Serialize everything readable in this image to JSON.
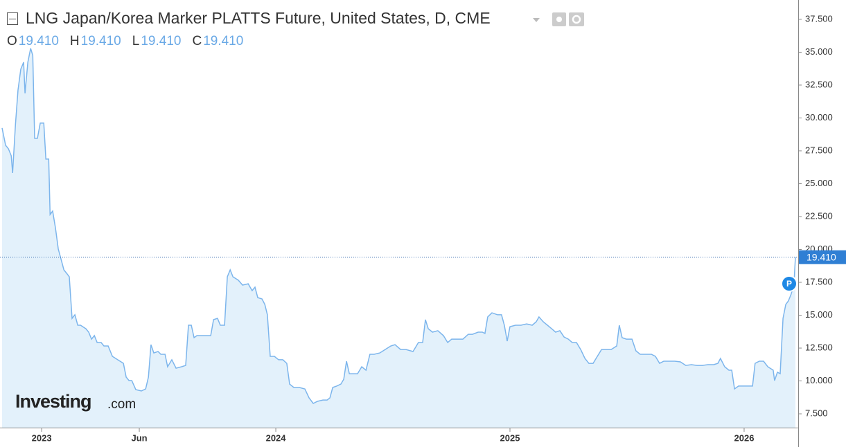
{
  "chart_data": {
    "type": "area",
    "title": "LNG Japan/Korea Marker PLATTS Future, United States, D, CME",
    "ohlc": [
      {
        "label": "O",
        "text": "19.410"
      },
      {
        "label": "H",
        "text": "19.410"
      },
      {
        "label": "L",
        "text": "19.410"
      },
      {
        "label": "C",
        "text": "19.410"
      }
    ],
    "watermark": [
      "Investing",
      ".com"
    ],
    "marker_label": "P",
    "last_price": {
      "value": 19.41,
      "label": "19.410"
    },
    "color": "#7cb5ec",
    "fill": "#e3f1fb",
    "xlim": [
      2022.831,
      2026.225
    ],
    "ylim": [
      6.45,
      38.97
    ],
    "xticks": [
      {
        "value": 2023,
        "label": "2023"
      },
      {
        "value": 2023.417,
        "label": "Jun"
      },
      {
        "value": 2024,
        "label": "2024"
      },
      {
        "value": 2025,
        "label": "2025"
      },
      {
        "value": 2026,
        "label": "2026"
      }
    ],
    "yticks": [
      {
        "value": 7.5,
        "label": "7.500"
      },
      {
        "value": 10,
        "label": "10.000"
      },
      {
        "value": 12.5,
        "label": "12.500"
      },
      {
        "value": 15,
        "label": "15.000"
      },
      {
        "value": 17.5,
        "label": "17.500"
      },
      {
        "value": 20,
        "label": "20.000"
      },
      {
        "value": 22.5,
        "label": "22.500"
      },
      {
        "value": 25,
        "label": "25.000"
      },
      {
        "value": 27.5,
        "label": "27.500"
      },
      {
        "value": 30,
        "label": "30.000"
      },
      {
        "value": 32.5,
        "label": "32.500"
      },
      {
        "value": 35,
        "label": "35.000"
      },
      {
        "value": 37.5,
        "label": "37.500"
      }
    ],
    "x": [
      2022.831,
      2022.846,
      2022.858,
      2022.87,
      2022.876,
      2022.888,
      2022.899,
      2022.911,
      2022.923,
      2022.929,
      2022.941,
      2022.953,
      2022.962,
      2022.97,
      2022.982,
      2022.994,
      2023.009,
      2023.018,
      2023.03,
      2023.036,
      2023.047,
      2023.059,
      2023.071,
      2023.083,
      2023.095,
      2023.107,
      2023.118,
      2023.13,
      2023.142,
      2023.154,
      2023.166,
      2023.189,
      2023.201,
      2023.213,
      2023.225,
      2023.237,
      2023.254,
      2023.266,
      2023.284,
      2023.302,
      2023.325,
      2023.349,
      2023.361,
      2023.373,
      2023.385,
      2023.402,
      2023.426,
      2023.444,
      2023.456,
      2023.467,
      2023.479,
      2023.497,
      2023.509,
      2023.527,
      2023.538,
      2023.556,
      2023.574,
      2023.598,
      2023.615,
      2023.627,
      2023.639,
      2023.651,
      2023.663,
      2023.68,
      2023.704,
      2023.722,
      2023.734,
      2023.751,
      2023.763,
      2023.781,
      2023.793,
      2023.805,
      2023.817,
      2023.84,
      2023.858,
      2023.882,
      2023.899,
      2023.911,
      2023.923,
      2023.941,
      2023.953,
      2023.964,
      2023.976,
      2023.994,
      2024.012,
      2024.03,
      2024.047,
      2024.059,
      2024.077,
      2024.101,
      2024.124,
      2024.142,
      2024.16,
      2024.178,
      2024.201,
      2024.219,
      2024.231,
      2024.243,
      2024.26,
      2024.278,
      2024.29,
      2024.302,
      2024.314,
      2024.331,
      2024.349,
      2024.367,
      2024.385,
      2024.402,
      2024.42,
      2024.444,
      2024.467,
      2024.491,
      2024.509,
      2024.533,
      2024.556,
      2024.586,
      2024.609,
      2024.627,
      2024.639,
      2024.651,
      2024.669,
      2024.692,
      2024.716,
      2024.734,
      2024.751,
      2024.775,
      2024.799,
      2024.822,
      2024.84,
      2024.864,
      2024.882,
      2024.893,
      2024.905,
      2024.923,
      2024.947,
      2024.964,
      2024.976,
      2024.988,
      2025.0,
      2025.024,
      2025.047,
      2025.071,
      2025.095,
      2025.112,
      2025.124,
      2025.142,
      2025.16,
      2025.178,
      2025.195,
      2025.213,
      2025.231,
      2025.249,
      2025.266,
      2025.284,
      2025.302,
      2025.32,
      2025.337,
      2025.355,
      2025.373,
      2025.391,
      2025.408,
      2025.432,
      2025.456,
      2025.467,
      2025.479,
      2025.497,
      2025.521,
      2025.538,
      2025.556,
      2025.58,
      2025.604,
      2025.621,
      2025.639,
      2025.657,
      2025.68,
      2025.704,
      2025.728,
      2025.751,
      2025.775,
      2025.799,
      2025.822,
      2025.846,
      2025.87,
      2025.888,
      2025.899,
      2025.917,
      2025.935,
      2025.947,
      2025.959,
      2025.976,
      2025.994,
      2026.018,
      2026.036,
      2026.047,
      2026.065,
      2026.083,
      2026.101,
      2026.124,
      2026.13,
      2026.142,
      2026.154,
      2026.166,
      2026.178,
      2026.189,
      2026.201,
      2026.213,
      2026.219
    ],
    "values": [
      29.24,
      27.92,
      27.66,
      27.13,
      25.82,
      29.5,
      32.13,
      33.71,
      34.24,
      31.87,
      34.24,
      35.29,
      34.76,
      28.45,
      28.45,
      29.61,
      29.61,
      26.87,
      26.87,
      22.66,
      22.92,
      21.61,
      20.03,
      19.24,
      18.45,
      18.18,
      17.92,
      14.76,
      15.03,
      14.24,
      14.24,
      13.97,
      13.71,
      13.18,
      13.45,
      12.92,
      12.92,
      12.66,
      12.66,
      11.87,
      11.61,
      11.34,
      10.29,
      10.03,
      10.03,
      9.34,
      9.24,
      9.39,
      10.29,
      12.76,
      12.13,
      12.24,
      12.03,
      12.03,
      11.08,
      11.61,
      10.97,
      11.08,
      11.18,
      14.24,
      14.24,
      13.29,
      13.45,
      13.45,
      13.45,
      13.45,
      14.66,
      14.76,
      14.24,
      14.24,
      17.92,
      18.45,
      17.92,
      17.66,
      17.29,
      17.39,
      16.87,
      17.13,
      16.34,
      16.24,
      15.82,
      15.03,
      11.87,
      11.87,
      11.61,
      11.61,
      11.34,
      9.76,
      9.5,
      9.5,
      9.39,
      8.71,
      8.29,
      8.45,
      8.55,
      8.55,
      8.71,
      9.5,
      9.61,
      9.76,
      10.13,
      11.5,
      10.55,
      10.55,
      10.55,
      11.08,
      10.82,
      12.03,
      12.03,
      12.13,
      12.39,
      12.66,
      12.76,
      12.39,
      12.39,
      12.24,
      12.92,
      12.92,
      14.66,
      13.97,
      13.71,
      13.82,
      13.45,
      12.92,
      13.18,
      13.18,
      13.18,
      13.55,
      13.55,
      13.71,
      13.71,
      13.61,
      14.87,
      15.18,
      15.03,
      15.03,
      14.24,
      13.03,
      14.13,
      14.24,
      14.24,
      14.34,
      14.24,
      14.5,
      14.87,
      14.5,
      14.24,
      13.97,
      13.71,
      13.82,
      13.34,
      13.18,
      12.92,
      12.92,
      12.39,
      11.71,
      11.34,
      11.34,
      11.87,
      12.39,
      12.39,
      12.39,
      12.66,
      14.24,
      13.29,
      13.18,
      13.18,
      12.29,
      12.03,
      12.03,
      12.03,
      11.87,
      11.34,
      11.5,
      11.5,
      11.5,
      11.45,
      11.18,
      11.24,
      11.18,
      11.18,
      11.24,
      11.24,
      11.34,
      11.71,
      11.08,
      10.82,
      10.82,
      9.39,
      9.61,
      9.61,
      9.61,
      9.61,
      11.34,
      11.5,
      11.5,
      11.08,
      10.82,
      10.03,
      10.66,
      10.55,
      14.76,
      15.82,
      16.08,
      16.61,
      17.39,
      19.41
    ]
  }
}
